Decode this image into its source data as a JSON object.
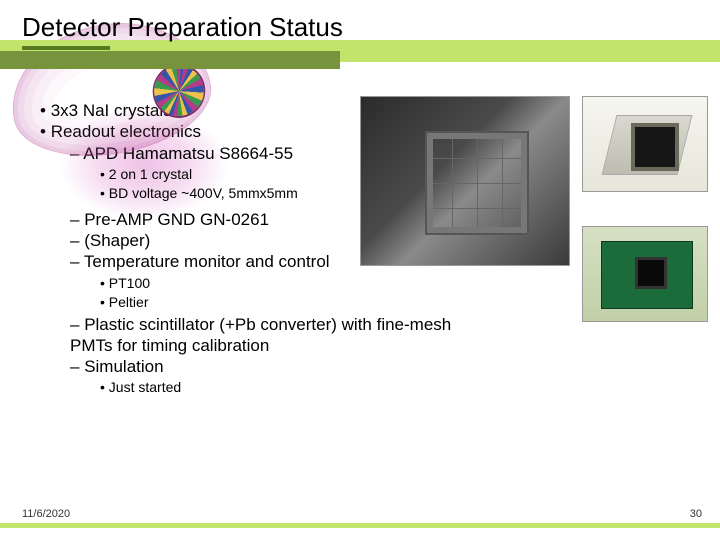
{
  "title": "Detector Preparation Status",
  "footer": {
    "date": "11/6/2020",
    "page": "30"
  },
  "bullets": {
    "crystals": "3x3 NaI crystals",
    "readout": "Readout electronics",
    "apd": "APD Hamamatsu S8664-55",
    "apd_sub1": "2 on 1 crystal",
    "apd_sub2": "BD voltage ~400V, 5mmx5mm",
    "preamp": "Pre-AMP GND GN-0261",
    "shaper": "(Shaper)",
    "temp": "Temperature monitor and control",
    "temp_sub1": "PT100",
    "temp_sub2": "Peltier",
    "plastic": "Plastic scintillator (+Pb converter) with fine-mesh PMTs for timing calibration",
    "sim": "Simulation",
    "sim_sub1": "Just started"
  },
  "colors": {
    "accent_light": "#c3e46a",
    "accent_dark": "#77933c",
    "underline": "#567a1f"
  }
}
